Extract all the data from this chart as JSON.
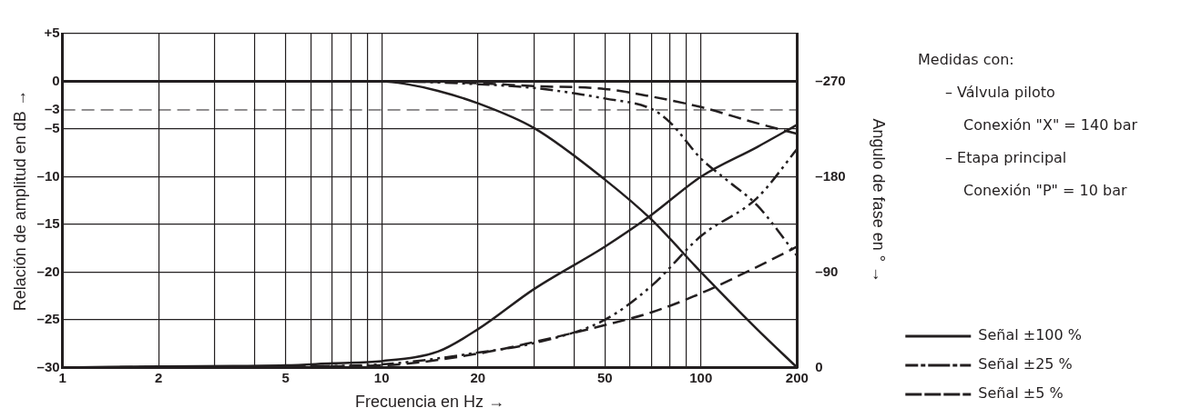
{
  "chart_data": {
    "type": "line",
    "xlabel": "Frecuencia en Hz →",
    "ylabel": "Relación de amplitud en dB →",
    "y2label": "Angulo de fase en ° →",
    "log": "x",
    "xlim": [
      1,
      200
    ],
    "xticks": [
      1,
      2,
      {
        "value": 3,
        "label": null
      },
      {
        "value": 4,
        "label": null
      },
      5,
      {
        "value": 6,
        "label": null
      },
      {
        "value": 7,
        "label": null
      },
      {
        "value": 8,
        "label": null
      },
      {
        "value": 9,
        "label": null
      },
      10,
      20,
      {
        "value": 30,
        "label": null
      },
      {
        "value": 40,
        "label": null
      },
      50,
      {
        "value": 60,
        "label": null
      },
      {
        "value": 70,
        "label": null
      },
      {
        "value": 80,
        "label": null
      },
      {
        "value": 90,
        "label": null
      },
      100,
      200
    ],
    "ylim": [
      -30,
      5
    ],
    "yticks": [
      {
        "value": 5,
        "label": "+5"
      },
      0,
      {
        "value": -3,
        "label": "–3"
      },
      {
        "value": -5,
        "label": "–5"
      },
      {
        "value": -10,
        "label": "–10"
      },
      {
        "value": -15,
        "label": "–15"
      },
      {
        "value": -20,
        "label": "–20"
      },
      {
        "value": -25,
        "label": "–25"
      },
      {
        "value": -30,
        "label": "–30"
      }
    ],
    "y2lim": [
      0,
      -315
    ],
    "y2ticks": [
      {
        "value": -270,
        "label": "–270"
      },
      {
        "value": -180,
        "label": "–180"
      },
      {
        "value": -90,
        "label": "–90"
      },
      0
    ],
    "grid": true,
    "legend": "right",
    "marker": "none",
    "ref_lines": [
      {
        "axis": "y",
        "value": -3,
        "line_style": "dashed",
        "color": "#231f20"
      }
    ],
    "annotations": [
      "Medidas con:",
      "– Válvula piloto",
      "Conexión \"X\" = 140 bar",
      "– Etapa principal",
      "Conexión \"P\" = 10 bar"
    ],
    "series": [
      {
        "name": "Señal ±100 %",
        "color": "#231f20",
        "line_style": "solid",
        "x": [
          1,
          5,
          10,
          12,
          15,
          20,
          30,
          50,
          70,
          100,
          150,
          200
        ],
        "values": [
          0,
          0,
          0,
          -0.3,
          -1,
          -2.3,
          -4.9,
          -10.3,
          -14.5,
          -20,
          -26,
          -30
        ]
      },
      {
        "name": "Señal ±25 %",
        "color": "#231f20",
        "line_style": "dashdot",
        "x": [
          1,
          10,
          20,
          30,
          50,
          70,
          80,
          100,
          120,
          150,
          200
        ],
        "values": [
          0,
          0,
          -0.3,
          -0.7,
          -1.8,
          -2.9,
          -4.3,
          -8.1,
          -10.3,
          -13,
          -18.3
        ]
      },
      {
        "name": "Señal ±5 %",
        "color": "#231f20",
        "line_style": "dashed",
        "x": [
          1,
          10,
          20,
          30,
          50,
          70,
          100,
          150,
          200
        ],
        "values": [
          0,
          0,
          -0.2,
          -0.5,
          -0.8,
          -1.6,
          -2.7,
          -4.4,
          -5.5
        ]
      },
      {
        "color": "#231f20",
        "line_style": "solid",
        "axis": "y2",
        "x": [
          1,
          2,
          5,
          7,
          10,
          15,
          20,
          30,
          50,
          70,
          100,
          150,
          200
        ],
        "values": [
          0,
          -1,
          -2,
          -4,
          -6,
          -15,
          -36,
          -74,
          -114,
          -144,
          -180,
          -208,
          -229
        ]
      },
      {
        "color": "#231f20",
        "line_style": "dashdot",
        "axis": "y2",
        "x": [
          1,
          5,
          10,
          20,
          30,
          50,
          70,
          100,
          150,
          200
        ],
        "values": [
          0,
          -1,
          -3,
          -14,
          -23,
          -45,
          -77,
          -124,
          -160,
          -206
        ]
      },
      {
        "color": "#231f20",
        "line_style": "dashed",
        "axis": "y2",
        "x": [
          1,
          5,
          10,
          20,
          30,
          50,
          70,
          100,
          150,
          200
        ],
        "values": [
          0,
          -1,
          -2,
          -13,
          -24,
          -40,
          -52,
          -70,
          -95,
          -114
        ]
      }
    ]
  }
}
